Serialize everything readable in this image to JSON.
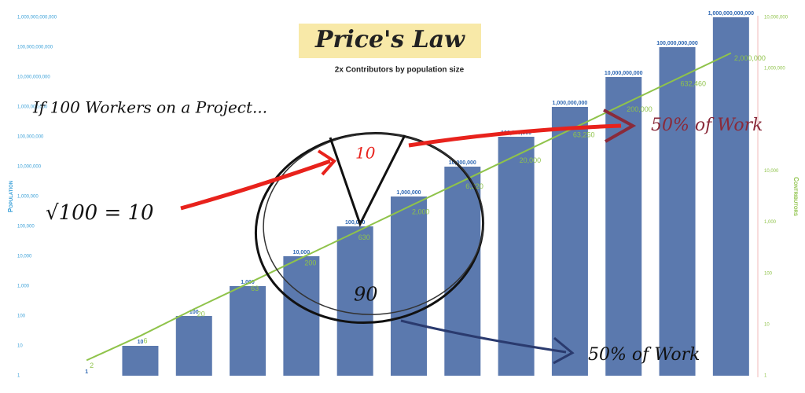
{
  "chart_data": {
    "type": "bar",
    "title": "Price's Law",
    "subtitle": "2x Contributors by population size",
    "ylabel": "Population",
    "y2label": "Contributors",
    "categories": [
      null,
      null,
      null,
      null,
      null,
      null,
      null,
      null,
      null,
      null,
      null,
      null,
      null
    ],
    "log_scale": true,
    "ylim": [
      1,
      1000000000000
    ],
    "yticks": [
      1,
      10,
      100,
      {
        "value": 1000,
        "label": "1,000"
      },
      {
        "value": 10000,
        "label": "10,000"
      },
      {
        "value": 100000,
        "label": "100,000"
      },
      {
        "value": 1000000,
        "label": "1,000,000"
      },
      {
        "value": 10000000,
        "label": "10,000,000"
      },
      {
        "value": 100000000,
        "label": "100,000,000"
      },
      {
        "value": 1000000000,
        "label": "1,000,000,000"
      },
      {
        "value": 10000000000,
        "label": "10,000,000,000"
      },
      {
        "value": 100000000000,
        "label": "100,000,000,000"
      },
      {
        "value": 1000000000000,
        "label": "1,000,000,000,000"
      }
    ],
    "y2lim": [
      1,
      10000000
    ],
    "y2ticks": [
      1,
      10,
      100,
      {
        "value": 1000,
        "label": "1,000"
      },
      {
        "value": 10000,
        "label": "10,000"
      },
      {
        "value": 1000000,
        "label": "1,000,000"
      },
      {
        "value": 10000000,
        "label": "10,000,000"
      }
    ],
    "series": [
      {
        "type": "bar",
        "color": "#5b79ae",
        "values": [
          1,
          10,
          100,
          1000,
          10000,
          100000,
          1000000,
          10000000,
          100000000,
          1000000000,
          10000000000,
          100000000000,
          1000000000000
        ],
        "value_labels": [
          "1",
          "10",
          "100",
          "1,000",
          "10,000",
          "100,000",
          "1,000,000",
          "10,000,000",
          "100,000,000",
          "1,000,000,000",
          "10,000,000,000",
          "100,000,000,000",
          "1,000,000,000,000"
        ]
      },
      {
        "type": "line",
        "axis": "y2",
        "color": "#8fc34a",
        "values": [
          2,
          6,
          20,
          63,
          200,
          630,
          2000,
          6320,
          20000,
          63250,
          200000,
          632460,
          2000000
        ],
        "value_labels": [
          "2",
          "6",
          "20",
          "63",
          "200",
          "630",
          "2,000",
          "6,320",
          "20,000",
          "63,250",
          "200,000",
          "632,460",
          "2,000,000"
        ]
      }
    ],
    "annotations": [
      "If 100 Workers on a Project...",
      "√100 = 10",
      "10",
      "90",
      "50% of Work",
      "50% of Work"
    ]
  }
}
